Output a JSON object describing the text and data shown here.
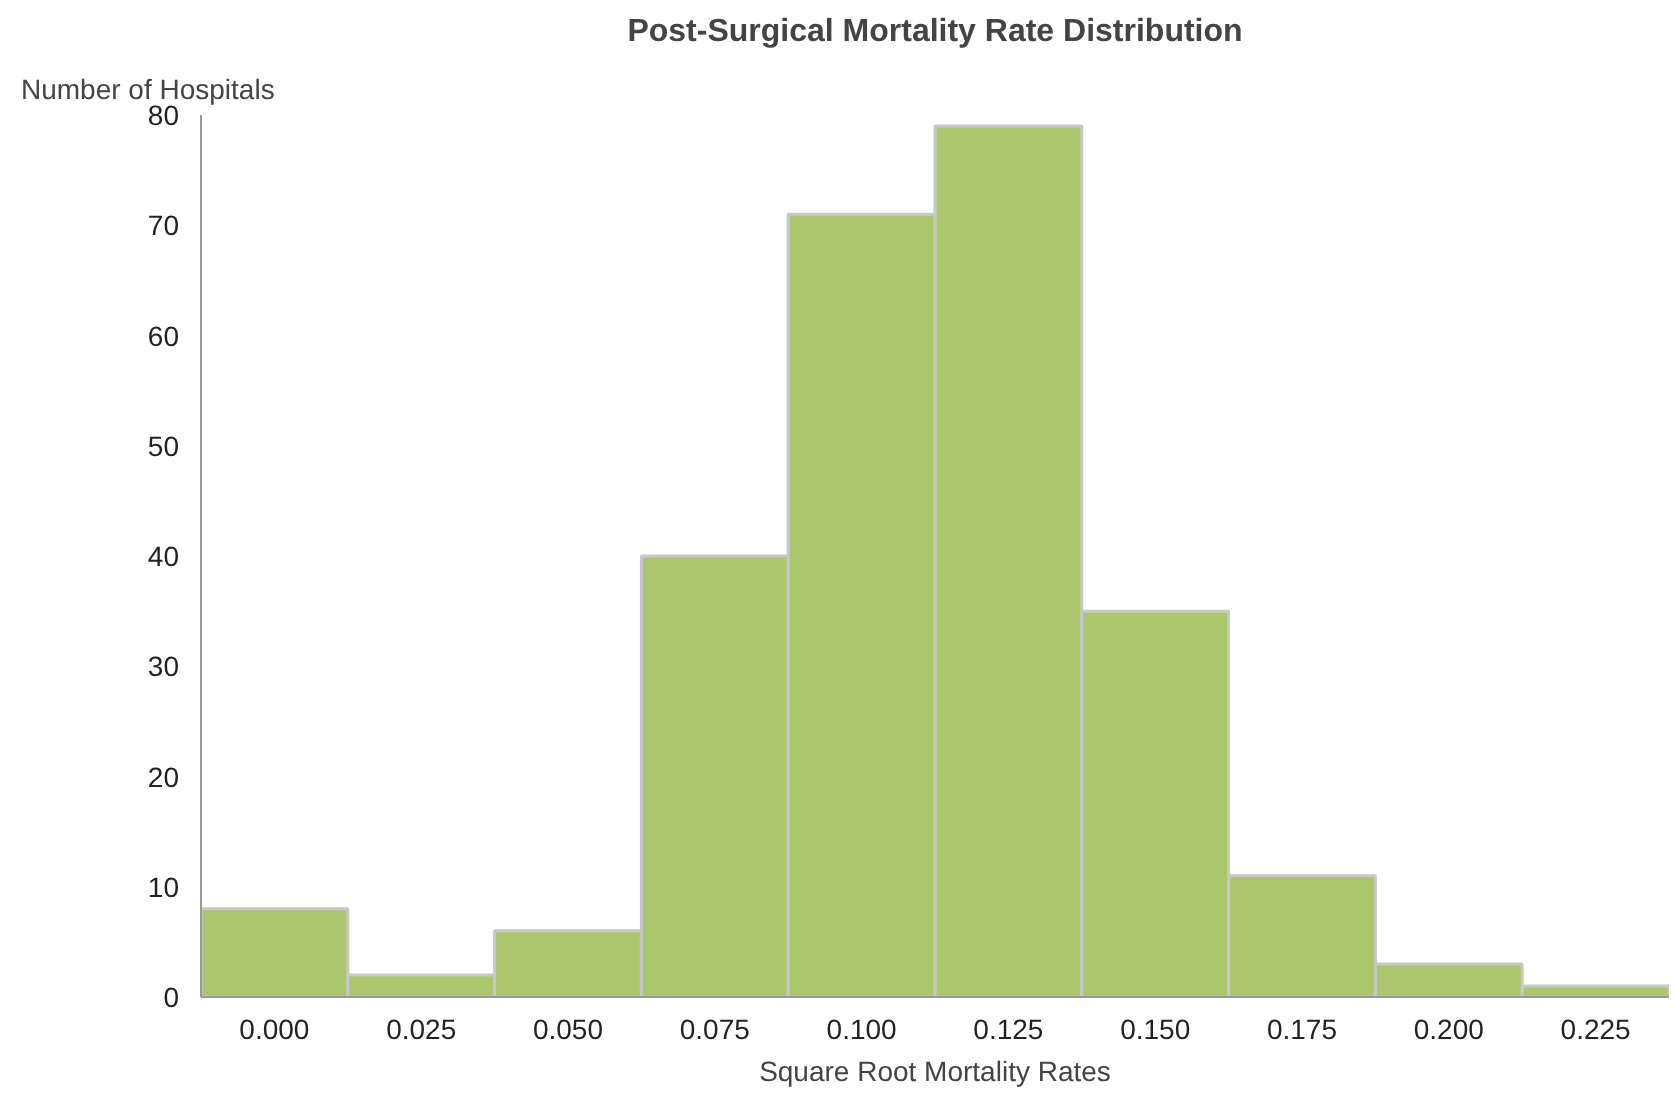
{
  "chart_data": {
    "type": "histogram",
    "title": "Post-Surgical Mortality Rate Distribution",
    "xlabel": "Square Root Mortality Rates",
    "ylabel": "Number of Hospitals",
    "bins": [
      -0.0125,
      0.0125,
      0.0375,
      0.0625,
      0.0875,
      0.1125,
      0.1375,
      0.1625,
      0.1875,
      0.2125,
      0.2375
    ],
    "values": [
      8,
      2,
      6,
      40,
      71,
      79,
      35,
      11,
      3,
      1
    ],
    "color": "#abc66c",
    "xlim": [
      -0.0125,
      0.2375
    ],
    "xticks": [
      {
        "value": 0,
        "label": "0.000"
      },
      {
        "value": 0.025,
        "label": "0.025"
      },
      {
        "value": 0.05,
        "label": "0.050"
      },
      {
        "value": 0.075,
        "label": "0.075"
      },
      {
        "value": 0.1,
        "label": "0.100"
      },
      {
        "value": 0.125,
        "label": "0.125"
      },
      {
        "value": 0.15,
        "label": "0.150"
      },
      {
        "value": 0.175,
        "label": "0.175"
      },
      {
        "value": 0.2,
        "label": "0.200"
      },
      {
        "value": 0.225,
        "label": "0.225"
      }
    ],
    "ylim": [
      0,
      80
    ],
    "yticks": [
      0,
      10,
      20,
      30,
      40,
      50,
      60,
      70,
      80
    ],
    "grid": false
  }
}
